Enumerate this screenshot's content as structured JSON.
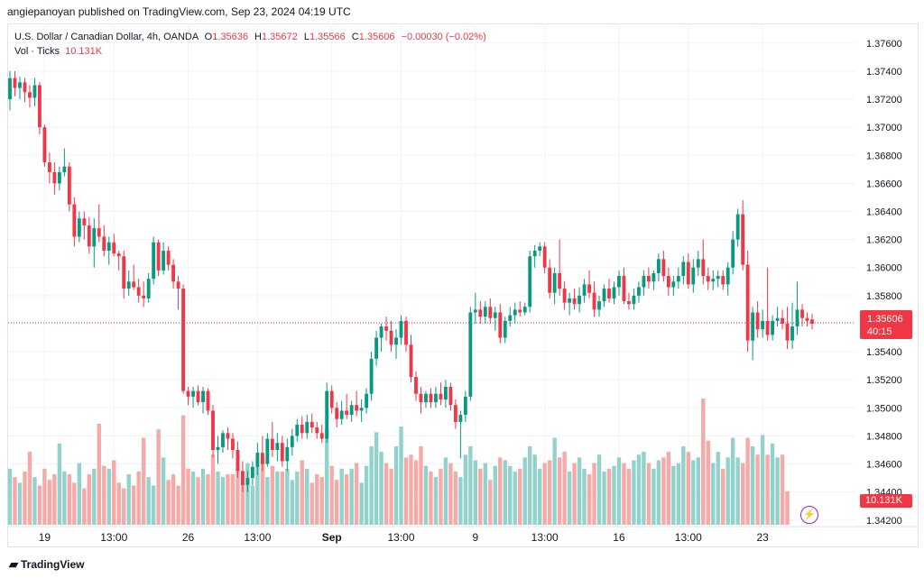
{
  "publisher": "angiepanoyan published on TradingView.com, Sep 23, 2024 04:19 UTC",
  "legend": {
    "symbol": "U.S. Dollar / Canadian Dollar, 4h, OANDA",
    "o_label": "O",
    "o": "1.35636",
    "h_label": "H",
    "h": "1.35672",
    "l_label": "L",
    "l": "1.35566",
    "c_label": "C",
    "c": "1.35606",
    "change": "−0.00030 (−0.02%)",
    "vol_label": "Vol · Ticks",
    "vol": "10.131K"
  },
  "price_tag": {
    "price": "1.35606",
    "countdown": "40:15"
  },
  "vol_tag": "10.131K",
  "brand": "TradingView",
  "colors": {
    "up": "#089981",
    "down": "#f23645",
    "up_vol": "#92d2cc",
    "down_vol": "#f7a9a7",
    "grid": "#f0f3fa",
    "text": "#131722"
  },
  "chart_data": {
    "type": "candlestick",
    "y_axis_ticks": [
      "1.37600",
      "1.37400",
      "1.37200",
      "1.37000",
      "1.36800",
      "1.36600",
      "1.36400",
      "1.36200",
      "1.36000",
      "1.35800",
      "1.35600",
      "1.35400",
      "1.35200",
      "1.35000",
      "1.34800",
      "1.34600",
      "1.34400",
      "1.34200"
    ],
    "y_range": [
      1.3416,
      1.3774
    ],
    "x_axis_ticks": [
      {
        "label": "19",
        "index": 7
      },
      {
        "label": "13:00",
        "index": 21
      },
      {
        "label": "26",
        "index": 36
      },
      {
        "label": "13:00",
        "index": 50
      },
      {
        "label": "Sep",
        "index": 65
      },
      {
        "label": "13:00",
        "index": 79
      },
      {
        "label": "9",
        "index": 94
      },
      {
        "label": "13:00",
        "index": 108
      },
      {
        "label": "16",
        "index": 123
      },
      {
        "label": "13:00",
        "index": 137
      },
      {
        "label": "23",
        "index": 152
      }
    ],
    "current_price": 1.35606,
    "candles": [
      [
        1.372,
        1.374,
        1.3712,
        1.3735
      ],
      [
        1.3735,
        1.374,
        1.3722,
        1.3728
      ],
      [
        1.3728,
        1.3736,
        1.372,
        1.3732
      ],
      [
        1.3732,
        1.3735,
        1.3718,
        1.3725
      ],
      [
        1.3725,
        1.373,
        1.3714,
        1.3721
      ],
      [
        1.3721,
        1.3735,
        1.3715,
        1.373
      ],
      [
        1.373,
        1.3732,
        1.3695,
        1.37
      ],
      [
        1.37,
        1.3702,
        1.3672,
        1.3675
      ],
      [
        1.3675,
        1.3682,
        1.366,
        1.3668
      ],
      [
        1.3668,
        1.3675,
        1.3652,
        1.366
      ],
      [
        1.366,
        1.3672,
        1.3655,
        1.3668
      ],
      [
        1.3668,
        1.3685,
        1.3665,
        1.3672
      ],
      [
        1.3672,
        1.3675,
        1.364,
        1.3645
      ],
      [
        1.3645,
        1.365,
        1.3615,
        1.3622
      ],
      [
        1.3622,
        1.364,
        1.3618,
        1.3635
      ],
      [
        1.3635,
        1.364,
        1.362,
        1.363
      ],
      [
        1.363,
        1.3636,
        1.361,
        1.3615
      ],
      [
        1.3615,
        1.3635,
        1.36,
        1.3628
      ],
      [
        1.3628,
        1.3645,
        1.3618,
        1.3622
      ],
      [
        1.3622,
        1.363,
        1.3608,
        1.3612
      ],
      [
        1.3612,
        1.3622,
        1.3602,
        1.3618
      ],
      [
        1.3618,
        1.3624,
        1.3608,
        1.361
      ],
      [
        1.361,
        1.3612,
        1.3598,
        1.3608
      ],
      [
        1.3608,
        1.3612,
        1.3578,
        1.3585
      ],
      [
        1.3585,
        1.3598,
        1.358,
        1.359
      ],
      [
        1.359,
        1.3602,
        1.3584,
        1.3586
      ],
      [
        1.3586,
        1.3592,
        1.3575,
        1.358
      ],
      [
        1.358,
        1.359,
        1.3572,
        1.3578
      ],
      [
        1.3578,
        1.3596,
        1.3575,
        1.3592
      ],
      [
        1.3592,
        1.3622,
        1.3588,
        1.3618
      ],
      [
        1.3618,
        1.362,
        1.3594,
        1.3598
      ],
      [
        1.3598,
        1.3618,
        1.3595,
        1.3612
      ],
      [
        1.3612,
        1.3615,
        1.3598,
        1.3602
      ],
      [
        1.3602,
        1.3606,
        1.3585,
        1.359
      ],
      [
        1.359,
        1.3594,
        1.357,
        1.3585
      ],
      [
        1.3585,
        1.3588,
        1.351,
        1.3512
      ],
      [
        1.3512,
        1.3515,
        1.3502,
        1.3508
      ],
      [
        1.3508,
        1.3515,
        1.35,
        1.3512
      ],
      [
        1.3512,
        1.3516,
        1.3502,
        1.3504
      ],
      [
        1.3504,
        1.3515,
        1.3496,
        1.3512
      ],
      [
        1.3512,
        1.3514,
        1.3495,
        1.3498
      ],
      [
        1.3498,
        1.3502,
        1.3465,
        1.347
      ],
      [
        1.347,
        1.348,
        1.346,
        1.3472
      ],
      [
        1.3472,
        1.3484,
        1.3468,
        1.3482
      ],
      [
        1.3482,
        1.3486,
        1.347,
        1.3478
      ],
      [
        1.3478,
        1.3482,
        1.3464,
        1.347
      ],
      [
        1.347,
        1.3476,
        1.345,
        1.3455
      ],
      [
        1.3455,
        1.3462,
        1.344,
        1.3445
      ],
      [
        1.3445,
        1.3455,
        1.344,
        1.345
      ],
      [
        1.345,
        1.3462,
        1.3445,
        1.3458
      ],
      [
        1.3458,
        1.3475,
        1.3452,
        1.3468
      ],
      [
        1.3468,
        1.348,
        1.3455,
        1.346
      ],
      [
        1.346,
        1.3482,
        1.3458,
        1.3478
      ],
      [
        1.3478,
        1.349,
        1.3465,
        1.347
      ],
      [
        1.347,
        1.3482,
        1.3462,
        1.3475
      ],
      [
        1.3475,
        1.348,
        1.3458,
        1.3462
      ],
      [
        1.3462,
        1.3478,
        1.3455,
        1.3472
      ],
      [
        1.3472,
        1.3485,
        1.3466,
        1.348
      ],
      [
        1.348,
        1.3492,
        1.3476,
        1.3488
      ],
      [
        1.3488,
        1.3494,
        1.3478,
        1.3482
      ],
      [
        1.3482,
        1.3495,
        1.3478,
        1.349
      ],
      [
        1.349,
        1.3496,
        1.3482,
        1.3486
      ],
      [
        1.3486,
        1.349,
        1.3478,
        1.3482
      ],
      [
        1.3482,
        1.3488,
        1.3475,
        1.3478
      ],
      [
        1.3478,
        1.3518,
        1.3475,
        1.3512
      ],
      [
        1.3512,
        1.3516,
        1.3496,
        1.35
      ],
      [
        1.35,
        1.3504,
        1.3486,
        1.3492
      ],
      [
        1.3492,
        1.3505,
        1.3488,
        1.3498
      ],
      [
        1.3498,
        1.351,
        1.3492,
        1.3495
      ],
      [
        1.3495,
        1.3505,
        1.349,
        1.3502
      ],
      [
        1.3502,
        1.3512,
        1.3494,
        1.3498
      ],
      [
        1.3498,
        1.3506,
        1.349,
        1.35
      ],
      [
        1.35,
        1.3514,
        1.3496,
        1.351
      ],
      [
        1.351,
        1.354,
        1.3505,
        1.3535
      ],
      [
        1.3535,
        1.3555,
        1.353,
        1.355
      ],
      [
        1.355,
        1.356,
        1.354,
        1.3558
      ],
      [
        1.3558,
        1.3565,
        1.3548,
        1.3555
      ],
      [
        1.3555,
        1.3562,
        1.354,
        1.3545
      ],
      [
        1.3545,
        1.3556,
        1.3535,
        1.355
      ],
      [
        1.355,
        1.3566,
        1.3545,
        1.3562
      ],
      [
        1.3562,
        1.3565,
        1.354,
        1.3545
      ],
      [
        1.3545,
        1.3552,
        1.3518,
        1.3522
      ],
      [
        1.3522,
        1.3526,
        1.3505,
        1.351
      ],
      [
        1.351,
        1.3515,
        1.3496,
        1.3504
      ],
      [
        1.3504,
        1.3512,
        1.35,
        1.351
      ],
      [
        1.351,
        1.3514,
        1.35,
        1.3504
      ],
      [
        1.3504,
        1.3515,
        1.35,
        1.351
      ],
      [
        1.351,
        1.3518,
        1.3502,
        1.3506
      ],
      [
        1.3506,
        1.352,
        1.35,
        1.3515
      ],
      [
        1.3515,
        1.3518,
        1.3498,
        1.3502
      ],
      [
        1.3502,
        1.3506,
        1.3485,
        1.349
      ],
      [
        1.349,
        1.3498,
        1.3464,
        1.3495
      ],
      [
        1.3495,
        1.3512,
        1.349,
        1.3508
      ],
      [
        1.3508,
        1.3572,
        1.3505,
        1.3568
      ],
      [
        1.3568,
        1.3582,
        1.356,
        1.357
      ],
      [
        1.357,
        1.3576,
        1.356,
        1.3565
      ],
      [
        1.3565,
        1.3576,
        1.356,
        1.3572
      ],
      [
        1.3572,
        1.3578,
        1.356,
        1.3564
      ],
      [
        1.3564,
        1.3572,
        1.3555,
        1.3568
      ],
      [
        1.3568,
        1.3574,
        1.3546,
        1.355
      ],
      [
        1.355,
        1.3565,
        1.3546,
        1.3562
      ],
      [
        1.3562,
        1.3572,
        1.3558,
        1.3566
      ],
      [
        1.3566,
        1.3575,
        1.356,
        1.357
      ],
      [
        1.357,
        1.3576,
        1.3565,
        1.3568
      ],
      [
        1.3568,
        1.3575,
        1.3566,
        1.3572
      ],
      [
        1.3572,
        1.3612,
        1.3568,
        1.3608
      ],
      [
        1.3608,
        1.3616,
        1.36,
        1.3612
      ],
      [
        1.3612,
        1.3618,
        1.3608,
        1.3615
      ],
      [
        1.3615,
        1.3618,
        1.3596,
        1.36
      ],
      [
        1.36,
        1.3606,
        1.3578,
        1.3582
      ],
      [
        1.3582,
        1.36,
        1.3574,
        1.3596
      ],
      [
        1.3596,
        1.362,
        1.358,
        1.3585
      ],
      [
        1.3585,
        1.359,
        1.357,
        1.3575
      ],
      [
        1.3575,
        1.3582,
        1.3566,
        1.3578
      ],
      [
        1.3578,
        1.3585,
        1.357,
        1.3574
      ],
      [
        1.3574,
        1.3586,
        1.3568,
        1.358
      ],
      [
        1.358,
        1.3592,
        1.3575,
        1.3588
      ],
      [
        1.3588,
        1.3598,
        1.3578,
        1.3582
      ],
      [
        1.3582,
        1.359,
        1.3565,
        1.357
      ],
      [
        1.357,
        1.358,
        1.3565,
        1.3576
      ],
      [
        1.3576,
        1.3588,
        1.3572,
        1.3585
      ],
      [
        1.3585,
        1.3592,
        1.3575,
        1.3578
      ],
      [
        1.3578,
        1.359,
        1.3574,
        1.3586
      ],
      [
        1.3586,
        1.3598,
        1.358,
        1.3594
      ],
      [
        1.3594,
        1.36,
        1.3574,
        1.3576
      ],
      [
        1.3576,
        1.3582,
        1.357,
        1.3574
      ],
      [
        1.3574,
        1.3585,
        1.357,
        1.358
      ],
      [
        1.358,
        1.359,
        1.3575,
        1.3586
      ],
      [
        1.3586,
        1.3598,
        1.358,
        1.3594
      ],
      [
        1.3594,
        1.36,
        1.3585,
        1.359
      ],
      [
        1.359,
        1.3598,
        1.3584,
        1.3596
      ],
      [
        1.3596,
        1.361,
        1.359,
        1.3606
      ],
      [
        1.3606,
        1.3612,
        1.359,
        1.3594
      ],
      [
        1.3594,
        1.36,
        1.358,
        1.3586
      ],
      [
        1.3586,
        1.3594,
        1.358,
        1.359
      ],
      [
        1.359,
        1.36,
        1.3585,
        1.3594
      ],
      [
        1.3594,
        1.3608,
        1.3588,
        1.3604
      ],
      [
        1.3604,
        1.361,
        1.3585,
        1.3588
      ],
      [
        1.3588,
        1.3606,
        1.3582,
        1.36
      ],
      [
        1.36,
        1.3612,
        1.3594,
        1.3606
      ],
      [
        1.3606,
        1.362,
        1.3588,
        1.3594
      ],
      [
        1.3594,
        1.36,
        1.3584,
        1.359
      ],
      [
        1.359,
        1.3598,
        1.3584,
        1.3592
      ],
      [
        1.3592,
        1.3598,
        1.3586,
        1.3594
      ],
      [
        1.3594,
        1.3598,
        1.3584,
        1.3588
      ],
      [
        1.3588,
        1.3604,
        1.358,
        1.36
      ],
      [
        1.36,
        1.3626,
        1.3595,
        1.362
      ],
      [
        1.362,
        1.3642,
        1.3615,
        1.3638
      ],
      [
        1.3638,
        1.3648,
        1.3598,
        1.3602
      ],
      [
        1.3602,
        1.3612,
        1.354,
        1.3548
      ],
      [
        1.3548,
        1.3572,
        1.3534,
        1.3568
      ],
      [
        1.3568,
        1.3576,
        1.355,
        1.3556
      ],
      [
        1.3556,
        1.357,
        1.355,
        1.3562
      ],
      [
        1.3562,
        1.36,
        1.3548,
        1.3552
      ],
      [
        1.3552,
        1.3566,
        1.3548,
        1.3562
      ],
      [
        1.3562,
        1.3572,
        1.3558,
        1.3564
      ],
      [
        1.3564,
        1.357,
        1.3556,
        1.356
      ],
      [
        1.356,
        1.3572,
        1.3542,
        1.3548
      ],
      [
        1.3548,
        1.3575,
        1.3542,
        1.3558
      ],
      [
        1.3558,
        1.359,
        1.3552,
        1.357
      ],
      [
        1.357,
        1.3574,
        1.3558,
        1.3564
      ],
      [
        1.3564,
        1.3568,
        1.3558,
        1.3562
      ],
      [
        1.3563,
        1.3567,
        1.3556,
        1.356
      ]
    ],
    "volumes": [
      40,
      34,
      30,
      38,
      52,
      34,
      28,
      40,
      32,
      36,
      58,
      38,
      36,
      30,
      44,
      26,
      36,
      40,
      72,
      42,
      40,
      46,
      30,
      26,
      36,
      28,
      38,
      62,
      34,
      28,
      68,
      48,
      32,
      36,
      28,
      78,
      40,
      38,
      34,
      40,
      36,
      50,
      38,
      34,
      36,
      36,
      40,
      30,
      44,
      28,
      42,
      48,
      34,
      42,
      38,
      38,
      40,
      32,
      38,
      46,
      40,
      30,
      36,
      34,
      68,
      42,
      32,
      40,
      36,
      40,
      44,
      30,
      42,
      56,
      66,
      52,
      44,
      40,
      56,
      70,
      48,
      50,
      46,
      56,
      42,
      38,
      34,
      40,
      48,
      44,
      38,
      34,
      50,
      56,
      46,
      40,
      44,
      32,
      42,
      48,
      46,
      42,
      38,
      40,
      48,
      56,
      50,
      40,
      44,
      46,
      62,
      48,
      52,
      38,
      44,
      48,
      40,
      36,
      44,
      50,
      38,
      40,
      42,
      48,
      44,
      40,
      46,
      50,
      52,
      44,
      40,
      46,
      48,
      52,
      42,
      44,
      56,
      52,
      46,
      48,
      90,
      60,
      44,
      52,
      40,
      48,
      62,
      48,
      44,
      62,
      56,
      50,
      64,
      50,
      58,
      48,
      50,
      24
    ]
  }
}
